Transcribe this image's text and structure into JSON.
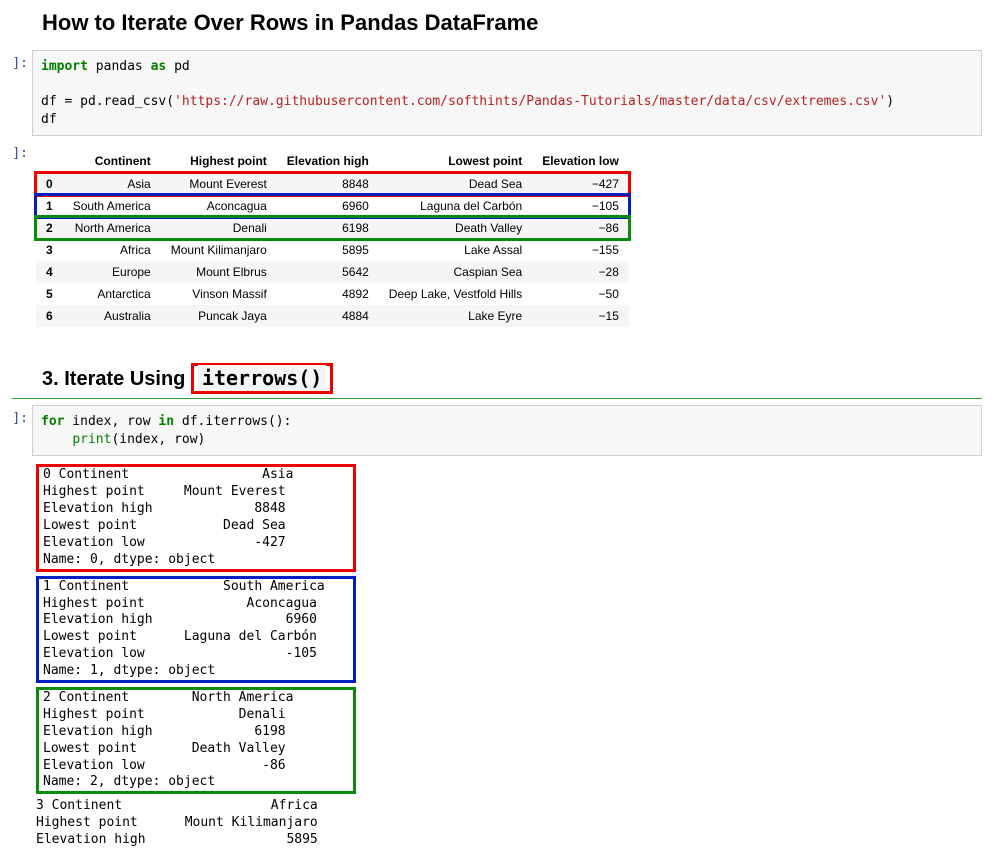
{
  "page_title": "How to Iterate Over Rows in Pandas DataFrame",
  "prompts": {
    "in": "]:",
    "out": "]:"
  },
  "code1": {
    "tokens": [
      {
        "t": "import",
        "c": "kw-green"
      },
      {
        "t": " pandas ",
        "c": ""
      },
      {
        "t": "as",
        "c": "kw-green"
      },
      {
        "t": " pd\n\ndf ",
        "c": ""
      },
      {
        "t": "=",
        "c": ""
      },
      {
        "t": " pd.read_csv(",
        "c": ""
      },
      {
        "t": "'https://raw.githubusercontent.com/softhints/Pandas-Tutorials/master/data/csv/extremes.csv'",
        "c": "kw-str"
      },
      {
        "t": ")\ndf",
        "c": ""
      }
    ]
  },
  "table": {
    "columns": [
      "",
      "Continent",
      "Highest point",
      "Elevation high",
      "Lowest point",
      "Elevation low"
    ],
    "rows": [
      {
        "idx": "0",
        "cells": [
          "Asia",
          "Mount Everest",
          "8848",
          "Dead Sea",
          "−427"
        ],
        "hl": "hl-red"
      },
      {
        "idx": "1",
        "cells": [
          "South America",
          "Aconcagua",
          "6960",
          "Laguna del Carbón",
          "−105"
        ],
        "hl": "hl-blue"
      },
      {
        "idx": "2",
        "cells": [
          "North America",
          "Denali",
          "6198",
          "Death Valley",
          "−86"
        ],
        "hl": "hl-green"
      },
      {
        "idx": "3",
        "cells": [
          "Africa",
          "Mount Kilimanjaro",
          "5895",
          "Lake Assal",
          "−155"
        ],
        "hl": ""
      },
      {
        "idx": "4",
        "cells": [
          "Europe",
          "Mount Elbrus",
          "5642",
          "Caspian Sea",
          "−28"
        ],
        "hl": ""
      },
      {
        "idx": "5",
        "cells": [
          "Antarctica",
          "Vinson Massif",
          "4892",
          "Deep Lake, Vestfold Hills",
          "−50"
        ],
        "hl": ""
      },
      {
        "idx": "6",
        "cells": [
          "Australia",
          "Puncak Jaya",
          "4884",
          "Lake Eyre",
          "−15"
        ],
        "hl": ""
      }
    ]
  },
  "section_title_prefix": "3. Iterate Using ",
  "section_title_code": "iterrows()",
  "code2": {
    "tokens": [
      {
        "t": "for",
        "c": "kw-green"
      },
      {
        "t": " index, row ",
        "c": ""
      },
      {
        "t": "in",
        "c": "kw-green"
      },
      {
        "t": " df.iterrows():\n    ",
        "c": ""
      },
      {
        "t": "print",
        "c": "kw-builtin"
      },
      {
        "t": "(index, row)",
        "c": ""
      }
    ]
  },
  "output_blocks": [
    {
      "hl": "ob-red",
      "text": "0 Continent                 Asia\nHighest point     Mount Everest\nElevation high             8848\nLowest point           Dead Sea\nElevation low              -427\nName: 0, dtype: object"
    },
    {
      "hl": "ob-blue",
      "text": "1 Continent            South America\nHighest point             Aconcagua\nElevation high                 6960\nLowest point      Laguna del Carbón\nElevation low                  -105\nName: 1, dtype: object"
    },
    {
      "hl": "ob-green",
      "text": "2 Continent        North America\nHighest point            Denali\nElevation high             6198\nLowest point       Death Valley\nElevation low               -86\nName: 2, dtype: object"
    }
  ],
  "output_tail": "3 Continent                   Africa\nHighest point      Mount Kilimanjaro\nElevation high                  5895"
}
